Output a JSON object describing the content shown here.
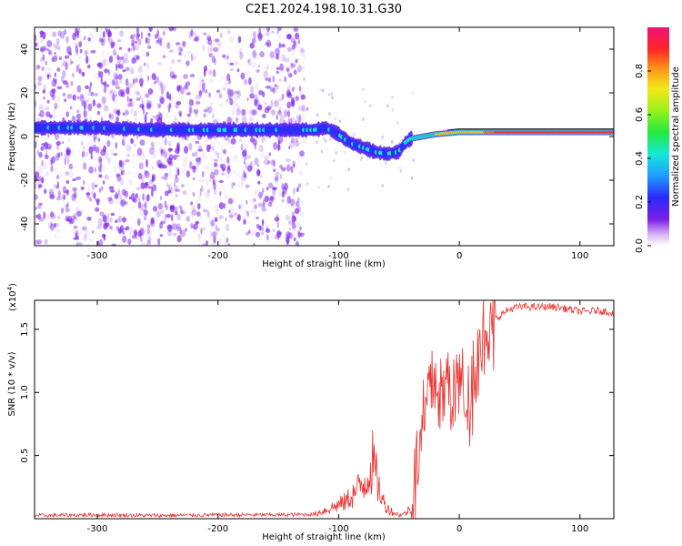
{
  "title": "C2E1.2024.198.10.31.G30",
  "colors": {
    "snr_line": "#e8332f",
    "spectrogram_noise": "#7a1fe8",
    "spectrogram_signal_low": "#3a2bff",
    "spectrogram_signal_mid": "#17e8e8",
    "spectrogram_signal_high": "#ff1a1a"
  },
  "chart_data": [
    {
      "type": "heatmap",
      "name": "spectrogram",
      "xlabel": "Height of straight line (km)",
      "ylabel": "Frequency (Hz)",
      "xlim": [
        -352,
        128
      ],
      "ylim": [
        -50,
        50
      ],
      "xticks": [
        -300,
        -200,
        -100,
        0,
        100
      ],
      "xtick_labels": [
        "-300",
        "-200",
        "-100",
        "0",
        "100"
      ],
      "yticks": [
        -40,
        -20,
        0,
        20,
        40
      ],
      "ytick_labels": [
        "-40",
        "-20",
        "0",
        "20",
        "40"
      ],
      "ridge": {
        "x": [
          -352,
          -300,
          -250,
          -200,
          -150,
          -130,
          -120,
          -110,
          -100,
          -90,
          -80,
          -70,
          -60,
          -50,
          -45,
          -40,
          -30,
          -20,
          0,
          50,
          100,
          128
        ],
        "frequency": [
          4,
          4,
          3,
          3,
          3,
          3,
          3,
          4,
          1,
          -3,
          -5,
          -7,
          -8,
          -7,
          -3,
          -1,
          0,
          1,
          2,
          2,
          2,
          2
        ]
      },
      "noise_region_x": [
        -352,
        -128
      ],
      "colorbar": {
        "label": "Normalized spectral amplitude",
        "range": [
          0,
          1
        ],
        "ticks": [
          0.0,
          0.2,
          0.4,
          0.6,
          0.8
        ],
        "tick_labels": [
          "0.0",
          "0.2",
          "0.4",
          "0.6",
          "0.8"
        ]
      }
    },
    {
      "type": "line",
      "name": "snr",
      "xlabel": "Height of straight line (km)",
      "ylabel": "SNR (10 * v/v)",
      "multiplier_label": "(x10",
      "multiplier_exp": "4",
      "multiplier_close": ")",
      "xlim": [
        -352,
        128
      ],
      "ylim": [
        0,
        17300
      ],
      "xticks": [
        -300,
        -200,
        -100,
        0,
        100
      ],
      "xtick_labels": [
        "-300",
        "-200",
        "-100",
        "0",
        "100"
      ],
      "yticks": [
        5000,
        10000,
        15000
      ],
      "ytick_labels": [
        "0.5",
        "1.0",
        "1.5"
      ],
      "x": [
        -352,
        -300,
        -250,
        -200,
        -150,
        -120,
        -105,
        -95,
        -85,
        -78,
        -72,
        -68,
        -64,
        -60,
        -55,
        -50,
        -45,
        -40,
        -35,
        -30,
        -25,
        -20,
        -15,
        -10,
        -5,
        0,
        5,
        10,
        15,
        20,
        25,
        30,
        35,
        40,
        45,
        55,
        65,
        75,
        85,
        95,
        105,
        115,
        128
      ],
      "values": [
        250,
        300,
        250,
        300,
        300,
        350,
        900,
        1300,
        2200,
        3000,
        4500,
        3000,
        1500,
        900,
        500,
        300,
        400,
        900,
        4000,
        7000,
        10000,
        11000,
        9500,
        10500,
        10000,
        11000,
        9500,
        10500,
        13000,
        14500,
        15300,
        15800,
        16200,
        16500,
        16700,
        16800,
        16750,
        16800,
        16700,
        16500,
        16400,
        16500,
        16300
      ]
    }
  ]
}
